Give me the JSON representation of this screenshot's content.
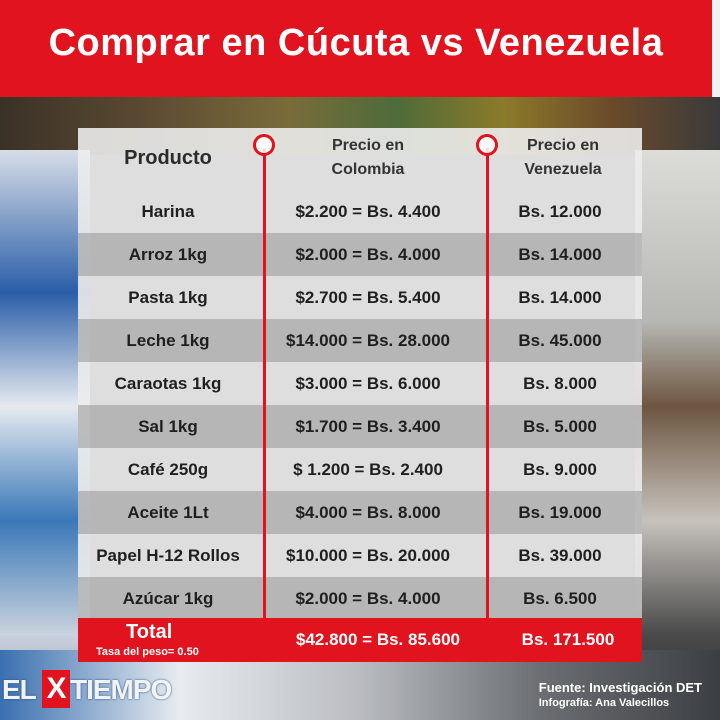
{
  "title": "Comprar en Cúcuta vs Venezuela",
  "columns": {
    "product": "Producto",
    "colombia": [
      "Precio en",
      "Colombia"
    ],
    "venezuela": [
      "Precio en",
      "Venezuela"
    ]
  },
  "rows": [
    {
      "product": "Harina",
      "colombia": "$2.200 = Bs. 4.400",
      "venezuela": "Bs. 12.000"
    },
    {
      "product": "Arroz 1kg",
      "colombia": "$2.000 = Bs. 4.000",
      "venezuela": "Bs. 14.000"
    },
    {
      "product": "Pasta 1kg",
      "colombia": "$2.700 = Bs. 5.400",
      "venezuela": "Bs. 14.000"
    },
    {
      "product": "Leche 1kg",
      "colombia": "$14.000 = Bs. 28.000",
      "venezuela": "Bs. 45.000"
    },
    {
      "product": "Caraotas 1kg",
      "colombia": "$3.000 = Bs. 6.000",
      "venezuela": "Bs. 8.000"
    },
    {
      "product": "Sal 1kg",
      "colombia": "$1.700 = Bs. 3.400",
      "venezuela": "Bs. 5.000"
    },
    {
      "product": "Café 250g",
      "colombia": "$ 1.200 = Bs. 2.400",
      "venezuela": "Bs. 9.000"
    },
    {
      "product": "Aceite 1Lt",
      "colombia": "$4.000 = Bs. 8.000",
      "venezuela": "Bs. 19.000"
    },
    {
      "product": "Papel H-12 Rollos",
      "colombia": "$10.000 = Bs. 20.000",
      "venezuela": "Bs. 39.000"
    },
    {
      "product": "Azúcar 1kg",
      "colombia": "$2.000 = Bs. 4.000",
      "venezuela": "Bs. 6.500"
    }
  ],
  "total": {
    "label": "Total",
    "rate": "Tasa del peso= 0.50",
    "colombia": "$42.800 = Bs. 85.600",
    "venezuela": "Bs. 171.500"
  },
  "logo": {
    "left": "EL",
    "x": "X",
    "right": "TIEMPO"
  },
  "source": {
    "line1": "Fuente: Investigación DET",
    "line2": "Infografía: Ana Valecillos"
  },
  "colors": {
    "accent": "#e0131f"
  }
}
